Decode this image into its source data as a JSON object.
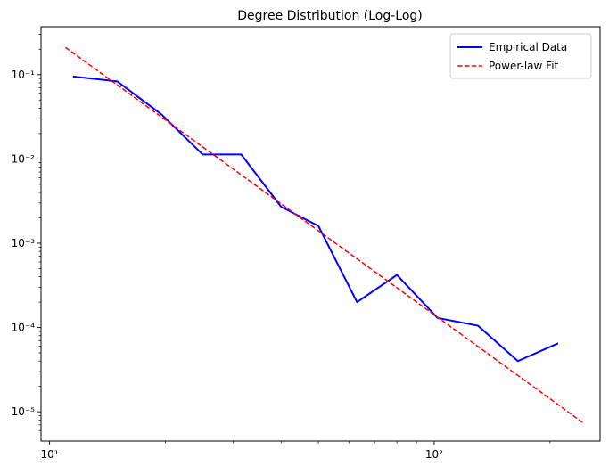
{
  "chart_data": {
    "type": "line",
    "title": "Degree Distribution (Log-Log)",
    "xlabel": "",
    "ylabel": "",
    "xscale": "log",
    "yscale": "log",
    "xlim": [
      9.5,
      270
    ],
    "ylim": [
      4.5e-06,
      0.37
    ],
    "x_ticks": [
      {
        "value": 10,
        "label": "10¹"
      },
      {
        "value": 100,
        "label": "10²"
      }
    ],
    "y_ticks": [
      {
        "value": 1e-05,
        "label": "10⁻⁵"
      },
      {
        "value": 0.0001,
        "label": "10⁻⁴"
      },
      {
        "value": 0.001,
        "label": "10⁻³"
      },
      {
        "value": 0.01,
        "label": "10⁻²"
      },
      {
        "value": 0.1,
        "label": "10⁻¹"
      }
    ],
    "grid": false,
    "legend_position": "top-right",
    "series": [
      {
        "name": "Empirical Data",
        "color": "#0000ff",
        "style": "solid",
        "x": [
          11.5,
          15,
          19.5,
          25,
          31.5,
          40,
          50,
          63,
          80,
          102,
          130,
          165,
          210
        ],
        "y": [
          0.095,
          0.083,
          0.034,
          0.0113,
          0.0113,
          0.0027,
          0.0016,
          0.0002,
          0.00042,
          0.00013,
          0.000105,
          4e-05,
          6.5e-05
        ]
      },
      {
        "name": "Power-law Fit",
        "color": "#ff0000",
        "style": "dashed",
        "x": [
          11,
          245
        ],
        "y": [
          0.21,
          7.3e-06
        ]
      }
    ]
  }
}
